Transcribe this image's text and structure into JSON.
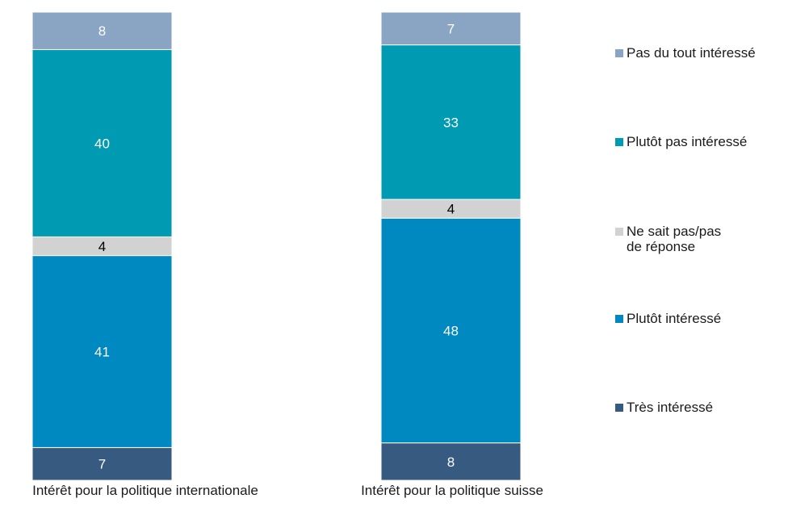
{
  "chart_data": {
    "type": "bar",
    "stacked": true,
    "categories": [
      "Intérêt pour la politique internationale",
      "Intérêt pour la politique suisse"
    ],
    "series": [
      {
        "name": "Très intéressé",
        "values": [
          7,
          8
        ],
        "color": "#375a80"
      },
      {
        "name": "Plutôt intéressé",
        "values": [
          41,
          48
        ],
        "color": "#0088c0"
      },
      {
        "name": "Ne sait pas/pas\nde réponse",
        "values": [
          4,
          4
        ],
        "color": "#d2d2d2"
      },
      {
        "name": "Plutôt pas intéressé",
        "values": [
          40,
          33
        ],
        "color": "#009ab3"
      },
      {
        "name": "Pas du tout intéressé",
        "values": [
          8,
          7
        ],
        "color": "#8aa4c4"
      }
    ],
    "legend_position": "right",
    "grid": false
  }
}
